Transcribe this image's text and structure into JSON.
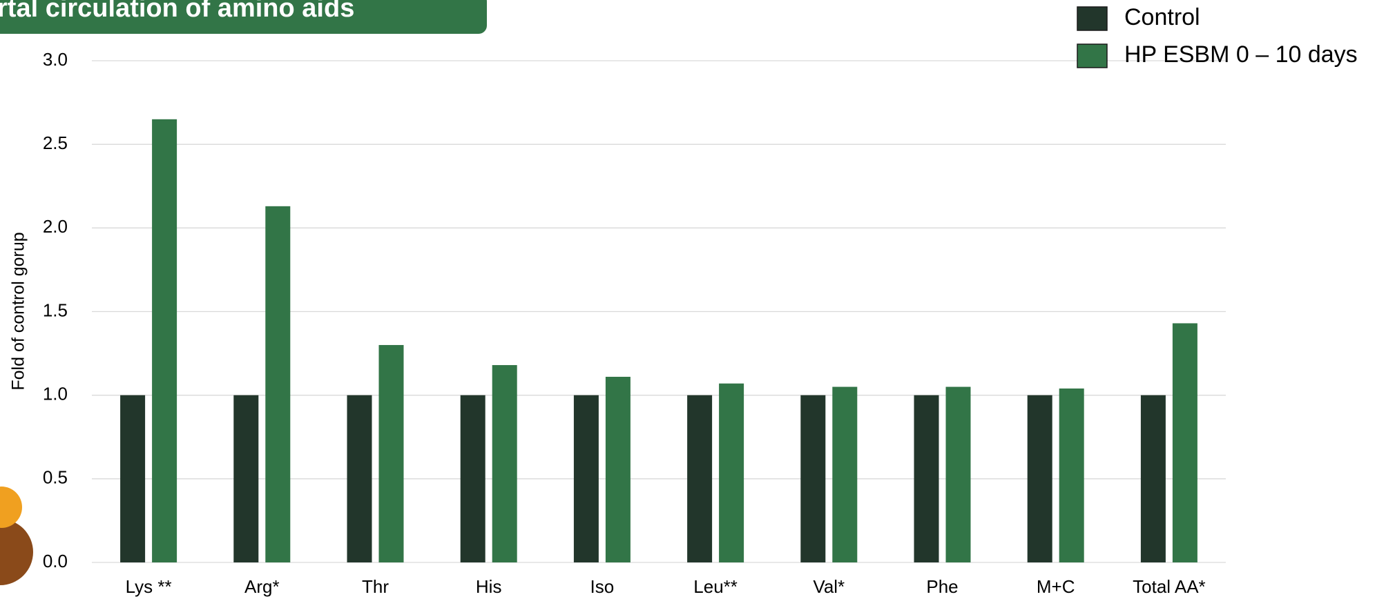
{
  "chart_data": {
    "type": "bar",
    "title": "rtal circulation of amino aids",
    "y_label": "Fold of control gorup",
    "categories": [
      "Lys **",
      "Arg*",
      "Thr",
      "His",
      "Iso",
      "Leu**",
      "Val*",
      "Phe",
      "M+C",
      "Total AA*"
    ],
    "series": [
      {
        "name": "Control",
        "color": "#22362b",
        "values": [
          1.0,
          1.0,
          1.0,
          1.0,
          1.0,
          1.0,
          1.0,
          1.0,
          1.0,
          1.0
        ]
      },
      {
        "name": "HP ESBM 0 – 10 days",
        "color": "#327547",
        "values": [
          2.65,
          2.13,
          1.3,
          1.18,
          1.11,
          1.07,
          1.05,
          1.05,
          1.04,
          1.43
        ]
      }
    ],
    "ylim": [
      0,
      3
    ],
    "yticks": [
      {
        "value": 0,
        "label": "0.0"
      },
      {
        "value": 0.5,
        "label": "0.5"
      },
      {
        "value": 1,
        "label": "1.0"
      },
      {
        "value": 1.5,
        "label": "1.5"
      },
      {
        "value": 2,
        "label": "2.0"
      },
      {
        "value": 2.5,
        "label": "2.5"
      },
      {
        "value": 3,
        "label": "3.0"
      }
    ],
    "grid": true,
    "legend": "top-right"
  }
}
